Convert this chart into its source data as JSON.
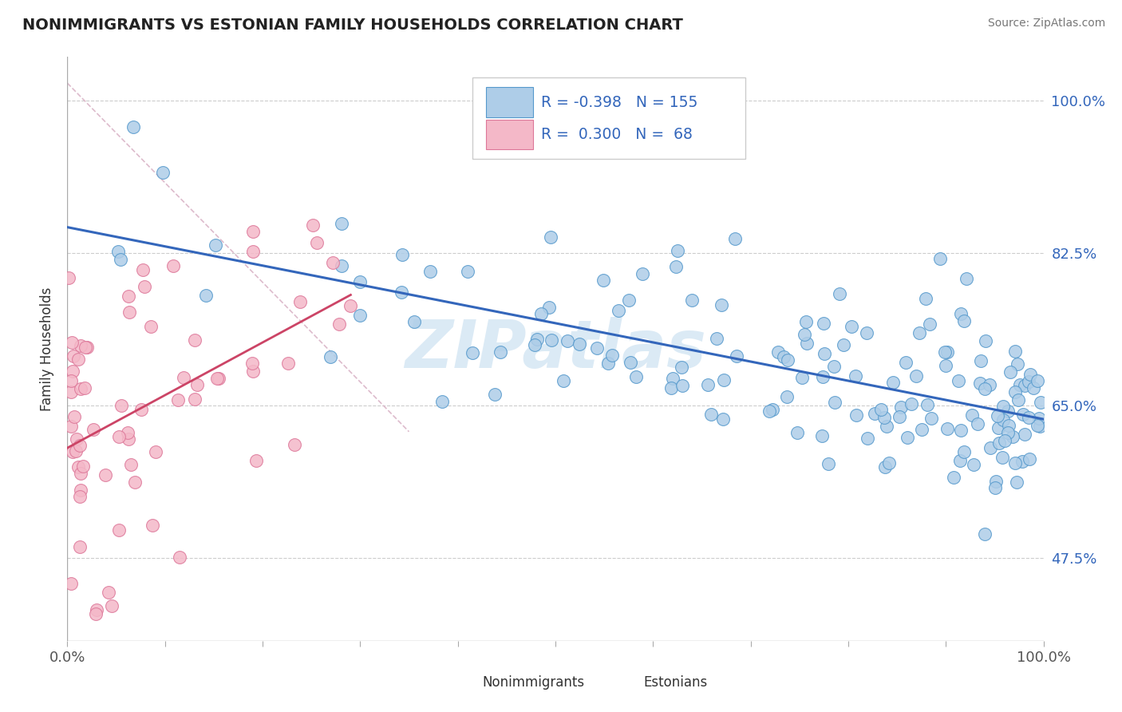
{
  "title": "NONIMMIGRANTS VS ESTONIAN FAMILY HOUSEHOLDS CORRELATION CHART",
  "source": "Source: ZipAtlas.com",
  "ylabel": "Family Households",
  "ytick_labels": [
    "47.5%",
    "65.0%",
    "82.5%",
    "100.0%"
  ],
  "ytick_values": [
    0.475,
    0.65,
    0.825,
    1.0
  ],
  "xlim": [
    0.0,
    1.0
  ],
  "ylim": [
    0.38,
    1.05
  ],
  "legend_r_blue": "-0.398",
  "legend_n_blue": "155",
  "legend_r_pink": "0.300",
  "legend_n_pink": "68",
  "blue_fill": "#aecde8",
  "blue_edge": "#5599cc",
  "pink_fill": "#f4b8c8",
  "pink_edge": "#dd7799",
  "trend_blue_color": "#3366bb",
  "trend_pink_color": "#cc4466",
  "diag_color": "#ddbbcc",
  "watermark": "ZIPatlas",
  "watermark_color": "#c8dff0"
}
